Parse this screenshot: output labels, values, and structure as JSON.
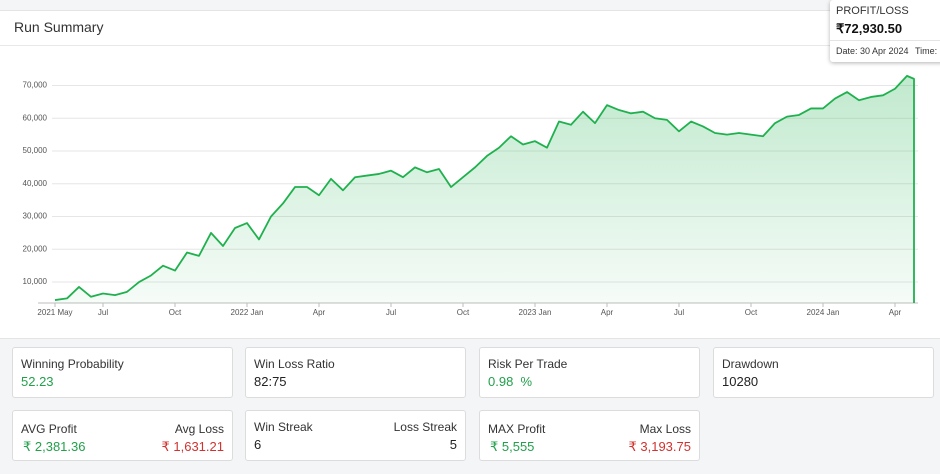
{
  "header": {
    "title": "Run Summary"
  },
  "chart_data": {
    "type": "area",
    "categories": [
      "2021 May",
      null,
      null,
      null,
      "Jul",
      null,
      null,
      null,
      null,
      null,
      "Oct",
      null,
      null,
      null,
      null,
      null,
      "2022 Jan",
      null,
      null,
      null,
      null,
      null,
      "Apr",
      null,
      null,
      null,
      null,
      null,
      "Jul",
      null,
      null,
      null,
      null,
      null,
      "Oct",
      null,
      null,
      null,
      null,
      null,
      "2023 Jan",
      null,
      null,
      null,
      null,
      null,
      "Apr",
      null,
      null,
      null,
      null,
      null,
      "Jul",
      null,
      null,
      null,
      null,
      null,
      "Oct",
      null,
      null,
      null,
      null,
      null,
      "2024 Jan",
      null,
      null,
      null,
      null,
      null,
      "Apr",
      null
    ],
    "values": [
      4500,
      5000,
      8500,
      5500,
      6500,
      6000,
      7000,
      10000,
      12000,
      15000,
      13500,
      19000,
      18000,
      25000,
      21000,
      26500,
      28000,
      23000,
      30000,
      34000,
      39000,
      39000,
      36500,
      41500,
      38000,
      42000,
      42500,
      43000,
      44000,
      42000,
      45000,
      43500,
      44500,
      39000,
      42000,
      45000,
      48500,
      51000,
      54500,
      52000,
      53000,
      51000,
      59000,
      58000,
      62000,
      58500,
      64000,
      62500,
      61500,
      62000,
      60000,
      59500,
      56000,
      59000,
      57500,
      55500,
      55000,
      55500,
      55000,
      54500,
      58500,
      60500,
      61000,
      63000,
      63000,
      66000,
      68000,
      65500,
      66500,
      67000,
      69000,
      72930.5
    ],
    "color": "#1fb14e",
    "ylim": [
      3600,
      79000
    ],
    "yticks": [
      {
        "value": 10000,
        "label": "10,000"
      },
      {
        "value": 20000,
        "label": "20,000"
      },
      {
        "value": 30000,
        "label": "30,000"
      },
      {
        "value": 40000,
        "label": "40,000"
      },
      {
        "value": 50000,
        "label": "50,000"
      },
      {
        "value": 60000,
        "label": "60,000"
      },
      {
        "value": 70000,
        "label": "70,000"
      }
    ],
    "grid": true,
    "tooltip": {
      "title": "PROFIT/LOSS",
      "value": "₹72,930.50",
      "date": "Date: 30 Apr 2024",
      "time": "Time:"
    }
  },
  "cards": [
    {
      "label": "Winning Probability",
      "value": "52.23"
    },
    {
      "label": "Win Loss Ratio",
      "value": "82:75"
    },
    {
      "label": "Risk Per Trade",
      "value": "0.98  %"
    },
    {
      "label": "Drawdown",
      "value": "10280"
    }
  ],
  "cards2": [
    {
      "label": "AVG Profit",
      "value": "₹ 2,381.36",
      "label2": "Avg Loss",
      "value2": "₹ 1,631.21"
    },
    {
      "label": "Win Streak",
      "value": "6",
      "label2": "Loss Streak",
      "value2": "5"
    },
    {
      "label": "MAX Profit",
      "value": "₹ 5,555",
      "label2": "Max Loss",
      "value2": "₹ 3,193.75"
    }
  ]
}
